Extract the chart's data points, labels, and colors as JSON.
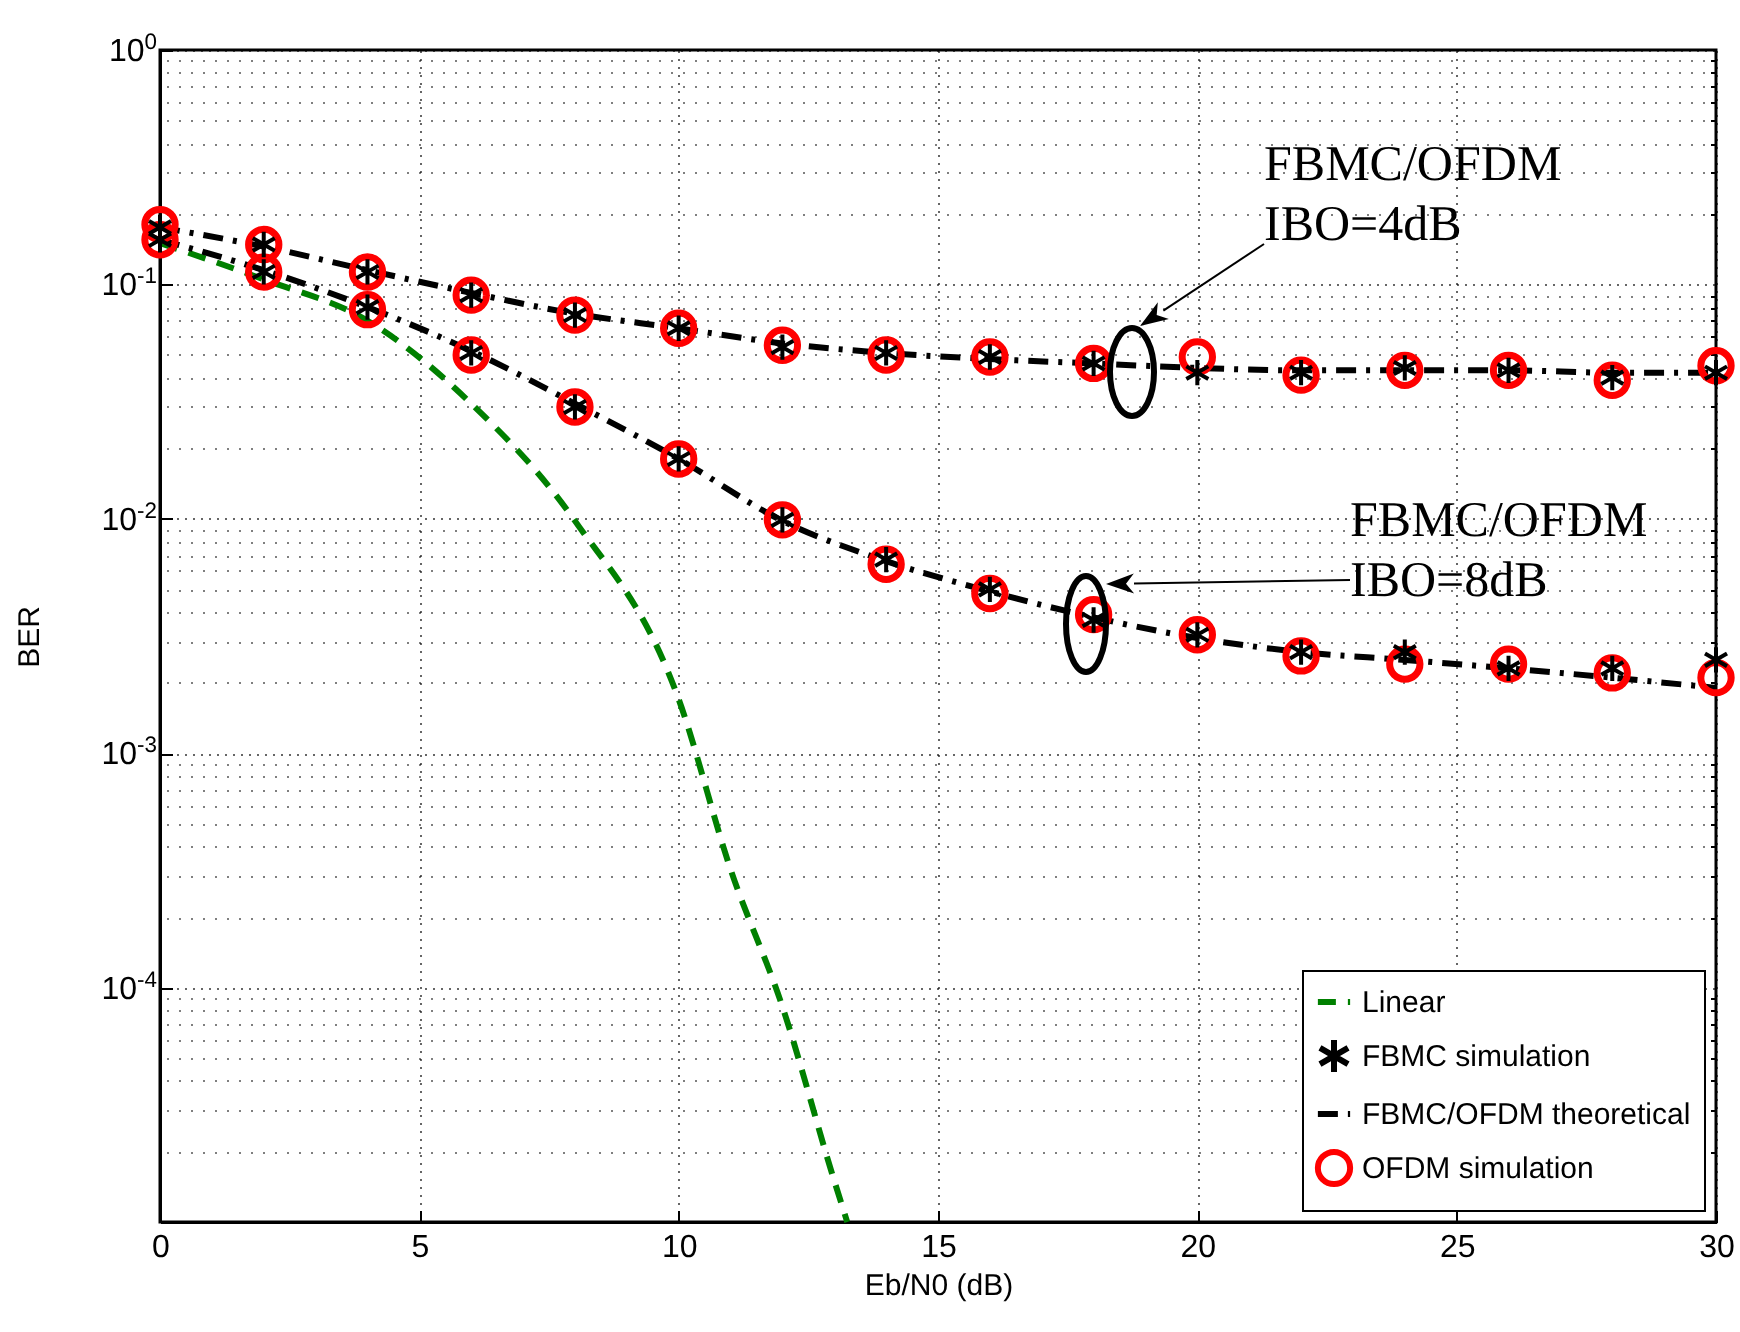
{
  "chart_data": {
    "type": "line",
    "xlabel": "Eb/N0 (dB)",
    "ylabel": "BER",
    "xlim": [
      0,
      30
    ],
    "xticks": [
      0,
      5,
      10,
      15,
      20,
      25,
      30
    ],
    "log": "y",
    "ylim": [
      1e-05,
      1
    ],
    "yticks": [
      {
        "value": 1e-05,
        "label": null
      },
      {
        "value": 0.0001,
        "label": "10$^{-4}$"
      },
      {
        "value": 0.001,
        "label": "10$^{-3}$"
      },
      {
        "value": 0.01,
        "label": "10$^{-2}$"
      },
      {
        "value": 0.1,
        "label": "10$^{-1}$"
      },
      {
        "value": 1,
        "label": "10$^{0}$"
      }
    ],
    "grid": true,
    "legend": "bottom right",
    "series": [
      {
        "name": "Linear",
        "color": "#008000",
        "line_style": "dashed",
        "marker": "none",
        "x": [
          0,
          2,
          4,
          6,
          8,
          10,
          11,
          12,
          13,
          13.25
        ],
        "values": [
          0.15,
          0.105,
          0.07,
          0.031,
          0.0098,
          0.0017,
          0.00032,
          8.3e-05,
          1.5e-05,
          1e-05
        ]
      },
      {
        "name": "FBMC simulation",
        "type": "scatter",
        "color": "#000000",
        "marker": "cross",
        "x": [
          0,
          2,
          4,
          6,
          8,
          10,
          12,
          14,
          16,
          18,
          20,
          22,
          24,
          26,
          28,
          30,
          0,
          2,
          4,
          6,
          8,
          10,
          12,
          14,
          16,
          18,
          20,
          22,
          24,
          26,
          28,
          30
        ],
        "values": [
          0.175,
          0.148,
          0.113,
          0.09,
          0.074,
          0.065,
          0.054,
          0.051,
          0.049,
          0.046,
          0.042,
          0.042,
          0.044,
          0.043,
          0.04,
          0.042,
          0.155,
          0.113,
          0.08,
          0.051,
          0.03,
          0.018,
          0.0099,
          0.0067,
          0.005,
          0.0037,
          0.0032,
          0.0027,
          0.0027,
          0.0023,
          0.0023,
          0.0025
        ]
      },
      {
        "name": "FBMC/OFDM theoretical",
        "color": "#000000",
        "line_style": "dashdot",
        "marker": "none",
        "x": [
          0,
          2,
          4,
          6,
          8,
          10,
          12,
          14,
          16,
          18,
          20,
          22,
          24,
          26,
          28,
          30
        ],
        "values": [
          0.175,
          0.145,
          0.115,
          0.092,
          0.075,
          0.065,
          0.056,
          0.051,
          0.048,
          0.046,
          0.044,
          0.043,
          0.043,
          0.043,
          0.042,
          0.042
        ]
      },
      {
        "color": "#000000",
        "line_style": "dashdot",
        "marker": "none",
        "x": [
          0,
          2,
          4,
          6,
          8,
          10,
          12,
          14,
          16,
          18,
          20,
          22,
          24,
          26,
          28,
          30
        ],
        "values": [
          0.155,
          0.115,
          0.08,
          0.052,
          0.031,
          0.018,
          0.0098,
          0.0066,
          0.0049,
          0.0038,
          0.0031,
          0.0027,
          0.0025,
          0.0023,
          0.0021,
          0.0019
        ]
      },
      {
        "name": "OFDM simulation",
        "type": "scatter",
        "color": "#ff0000",
        "marker": "circle",
        "x": [
          0,
          2,
          4,
          6,
          8,
          10,
          12,
          14,
          16,
          18,
          20,
          22,
          24,
          26,
          28,
          30,
          0,
          2,
          4,
          6,
          8,
          10,
          12,
          14,
          16,
          18,
          20,
          22,
          24,
          26,
          28,
          30
        ],
        "values": [
          0.18,
          0.148,
          0.113,
          0.09,
          0.074,
          0.065,
          0.055,
          0.05,
          0.049,
          0.046,
          0.049,
          0.041,
          0.043,
          0.043,
          0.039,
          0.045,
          0.155,
          0.113,
          0.078,
          0.05,
          0.03,
          0.018,
          0.0099,
          0.0064,
          0.0048,
          0.0039,
          0.0032,
          0.0026,
          0.0024,
          0.0024,
          0.0022,
          0.0021
        ]
      }
    ],
    "annotations": [
      "FBMC/OFDM\nIBO=4dB",
      "FBMC/OFDM\nIBO=8dB"
    ]
  }
}
